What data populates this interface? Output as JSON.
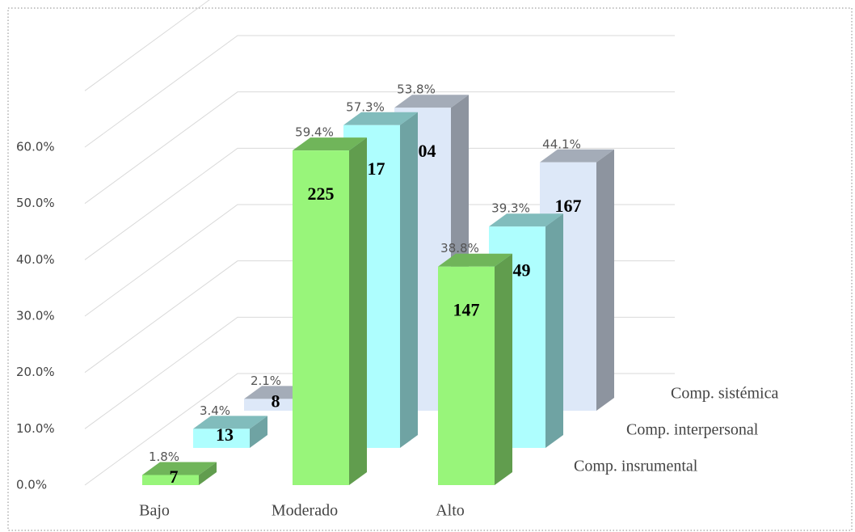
{
  "chart_data": {
    "type": "bar3d",
    "categories": [
      "Bajo",
      "Moderado",
      "Alto"
    ],
    "series": [
      {
        "name": "Comp. insrumental",
        "color": "#98f57a",
        "values": [
          1.8,
          59.4,
          38.8
        ],
        "value_labels": [
          "1.8%",
          "59.4%",
          "38.8%"
        ],
        "counts": [
          7,
          225,
          147
        ]
      },
      {
        "name": "Comp. interpersonal",
        "color": "#aefefe",
        "values": [
          3.4,
          57.3,
          39.3
        ],
        "value_labels": [
          "3.4%",
          "57.3%",
          "39.3%"
        ],
        "counts": [
          13,
          217,
          149
        ]
      },
      {
        "name": "Comp. sistémica",
        "color": "#dde8f8",
        "values": [
          2.1,
          53.8,
          44.1
        ],
        "value_labels": [
          "2.1%",
          "53.8%",
          "44.1%"
        ],
        "counts": [
          8,
          204,
          167
        ]
      }
    ],
    "ylim": [
      0,
      70
    ],
    "yticks": [
      {
        "value": 0,
        "label": "0.0%"
      },
      {
        "value": 10,
        "label": "10.0%"
      },
      {
        "value": 20,
        "label": "20.0%"
      },
      {
        "value": 30,
        "label": "30.0%"
      },
      {
        "value": 40,
        "label": "40.0%"
      },
      {
        "value": 50,
        "label": "50.0%"
      },
      {
        "value": 60,
        "label": "60.0%"
      }
    ],
    "grid": true
  }
}
